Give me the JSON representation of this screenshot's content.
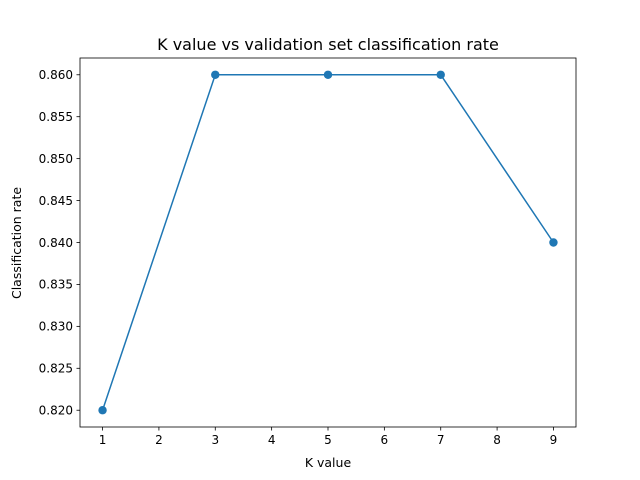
{
  "chart_data": {
    "type": "line",
    "title": "K value vs validation set classification rate",
    "xlabel": "K value",
    "ylabel": "Classification rate",
    "xlim": [
      0.6,
      9.4
    ],
    "ylim": [
      0.818,
      0.862
    ],
    "x_ticks": [
      1,
      2,
      3,
      4,
      5,
      6,
      7,
      8,
      9
    ],
    "x_tick_labels": [
      "1",
      "2",
      "3",
      "4",
      "5",
      "6",
      "7",
      "8",
      "9"
    ],
    "y_ticks": [
      0.82,
      0.825,
      0.83,
      0.835,
      0.84,
      0.845,
      0.85,
      0.855,
      0.86
    ],
    "y_tick_labels": [
      "0.820",
      "0.825",
      "0.830",
      "0.835",
      "0.840",
      "0.845",
      "0.850",
      "0.855",
      "0.860"
    ],
    "grid": false,
    "legend": "none",
    "series": [
      {
        "x": [
          1,
          3,
          5,
          7,
          9
        ],
        "y": [
          0.82,
          0.86,
          0.86,
          0.86,
          0.84
        ],
        "color": "#1f77b4",
        "marker": "circle"
      }
    ]
  }
}
